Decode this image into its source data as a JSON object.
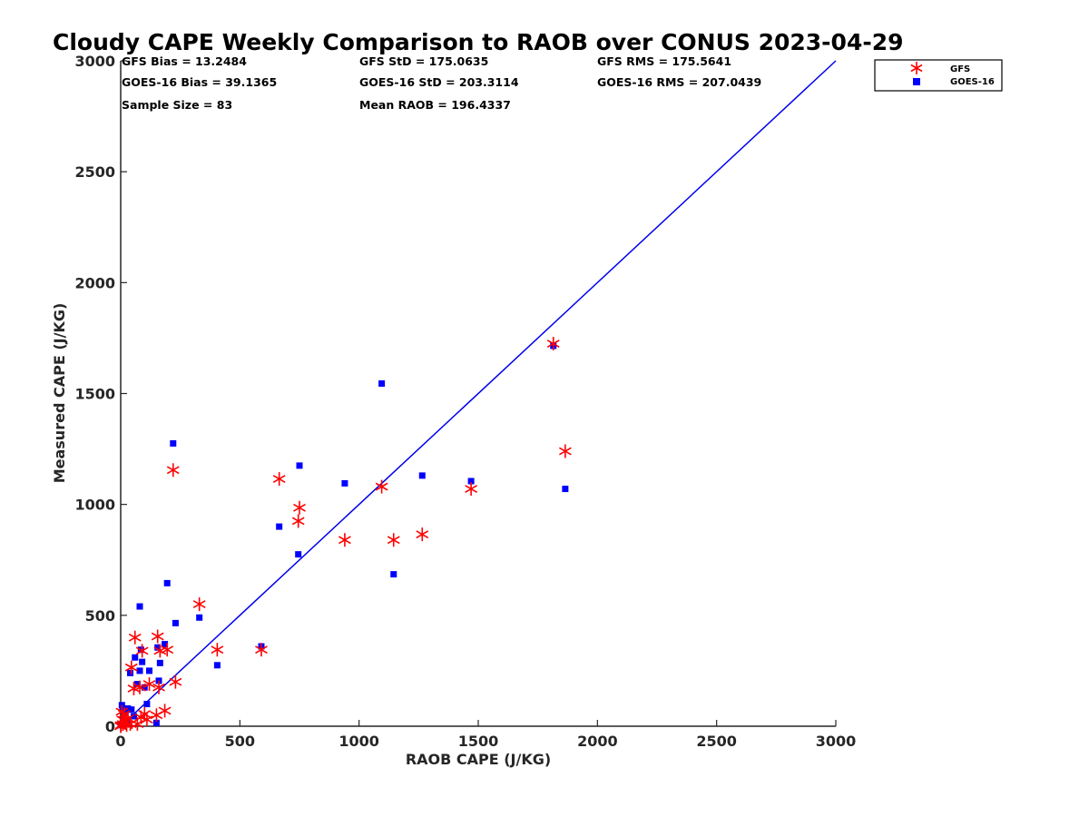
{
  "chart_data": {
    "type": "scatter",
    "title": "Cloudy CAPE Weekly Comparison to RAOB over CONUS 2023-04-29",
    "xlabel": "RAOB CAPE (J/KG)",
    "ylabel": "Measured CAPE (J/KG)",
    "xlim": [
      0,
      3000
    ],
    "ylim": [
      0,
      3000
    ],
    "xticks": [
      0,
      500,
      1000,
      1500,
      2000,
      2500,
      3000
    ],
    "yticks": [
      0,
      500,
      1000,
      1500,
      2000,
      2500,
      3000
    ],
    "grid": false,
    "legend_position": "top-right",
    "stats": [
      [
        "GFS Bias = 13.2484",
        "GFS StD = 175.0635",
        "GFS RMS = 175.5641"
      ],
      [
        "GOES-16 Bias = 39.1365",
        "GOES-16 StD = 203.3114",
        "GOES-16 RMS = 207.0439"
      ],
      [
        "Sample Size = 83",
        "Mean RAOB = 196.4337",
        ""
      ]
    ],
    "reference_line": {
      "x": [
        0,
        3000
      ],
      "y": [
        0,
        3000
      ],
      "color": "#0000ee"
    },
    "series": [
      {
        "name": "GFS",
        "marker": "asterisk",
        "color": "#ff0000",
        "points": [
          [
            1815,
            1725
          ],
          [
            1865,
            1240
          ],
          [
            1470,
            1070
          ],
          [
            1265,
            865
          ],
          [
            1145,
            840
          ],
          [
            1095,
            1080
          ],
          [
            940,
            840
          ],
          [
            750,
            985
          ],
          [
            745,
            925
          ],
          [
            665,
            1115
          ],
          [
            590,
            345
          ],
          [
            405,
            345
          ],
          [
            330,
            550
          ],
          [
            230,
            200
          ],
          [
            220,
            1155
          ],
          [
            195,
            345
          ],
          [
            185,
            70
          ],
          [
            165,
            340
          ],
          [
            160,
            175
          ],
          [
            155,
            405
          ],
          [
            150,
            50
          ],
          [
            120,
            190
          ],
          [
            110,
            30
          ],
          [
            100,
            55
          ],
          [
            90,
            340
          ],
          [
            85,
            40
          ],
          [
            80,
            175
          ],
          [
            70,
            10
          ],
          [
            60,
            400
          ],
          [
            55,
            170
          ],
          [
            45,
            265
          ],
          [
            40,
            10
          ],
          [
            30,
            35
          ],
          [
            25,
            5
          ],
          [
            20,
            20
          ],
          [
            15,
            55
          ],
          [
            10,
            10
          ],
          [
            8,
            30
          ],
          [
            5,
            65
          ],
          [
            2,
            5
          ],
          [
            0,
            0
          ]
        ]
      },
      {
        "name": "GOES-16",
        "marker": "square",
        "color": "#0000ff",
        "points": [
          [
            1815,
            1715
          ],
          [
            1865,
            1070
          ],
          [
            1470,
            1105
          ],
          [
            1265,
            1130
          ],
          [
            1145,
            685
          ],
          [
            1095,
            1545
          ],
          [
            940,
            1095
          ],
          [
            750,
            1175
          ],
          [
            745,
            775
          ],
          [
            665,
            900
          ],
          [
            590,
            360
          ],
          [
            405,
            275
          ],
          [
            330,
            490
          ],
          [
            230,
            465
          ],
          [
            220,
            1275
          ],
          [
            195,
            645
          ],
          [
            185,
            370
          ],
          [
            165,
            285
          ],
          [
            160,
            205
          ],
          [
            155,
            355
          ],
          [
            150,
            15
          ],
          [
            120,
            250
          ],
          [
            110,
            100
          ],
          [
            100,
            175
          ],
          [
            90,
            290
          ],
          [
            85,
            345
          ],
          [
            80,
            250
          ],
          [
            80,
            540
          ],
          [
            70,
            190
          ],
          [
            60,
            310
          ],
          [
            55,
            45
          ],
          [
            45,
            75
          ],
          [
            40,
            240
          ],
          [
            30,
            80
          ],
          [
            25,
            15
          ],
          [
            20,
            60
          ],
          [
            15,
            20
          ],
          [
            10,
            35
          ],
          [
            8,
            70
          ],
          [
            5,
            95
          ],
          [
            2,
            10
          ],
          [
            0,
            5
          ]
        ]
      }
    ]
  }
}
